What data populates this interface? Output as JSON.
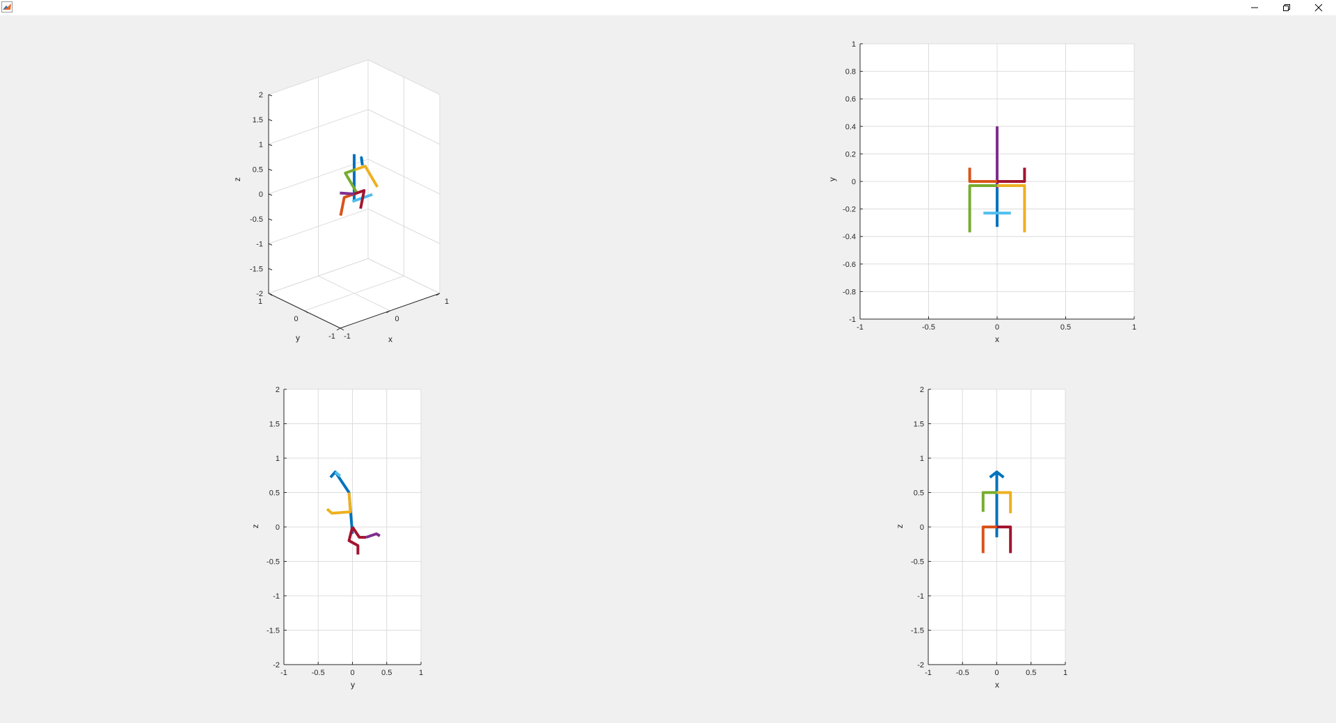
{
  "window": {
    "controls": {
      "minimize": "minimize",
      "restore": "restore",
      "close": "close"
    }
  },
  "colors": {
    "blue": "#0072BD",
    "orange": "#D95319",
    "yellow": "#EDB120",
    "purple": "#7E2F8E",
    "green": "#77AC30",
    "cyan": "#4DBEEE",
    "red": "#A2142F"
  },
  "chart_data": [
    {
      "id": "view-3d",
      "type": "line3d",
      "xlabel": "x",
      "ylabel": "y",
      "zlabel": "z",
      "xlim": [
        -1,
        1
      ],
      "ylim": [
        -1,
        1
      ],
      "zlim": [
        -2,
        2
      ],
      "xticks": [
        -1,
        0,
        1
      ],
      "yticks": [
        -1,
        0,
        1
      ],
      "zticks": [
        -2,
        -1.5,
        -1,
        -0.5,
        0,
        0.5,
        1,
        1.5,
        2
      ],
      "grid": true
    },
    {
      "id": "view-xy",
      "type": "line",
      "xlabel": "x",
      "ylabel": "y",
      "xlim": [
        -1,
        1
      ],
      "ylim": [
        -1,
        1
      ],
      "xticks": [
        -1,
        -0.5,
        0,
        0.5,
        1
      ],
      "yticks": [
        -1,
        -0.8,
        -0.6,
        -0.4,
        -0.2,
        0,
        0.2,
        0.4,
        0.6,
        0.8,
        1
      ],
      "grid": true
    },
    {
      "id": "view-yz",
      "type": "line",
      "xlabel": "y",
      "ylabel": "z",
      "xlim": [
        -1,
        1
      ],
      "ylim": [
        -2,
        2
      ],
      "xticks": [
        -1,
        -0.5,
        0,
        0.5,
        1
      ],
      "yticks": [
        -2,
        -1.5,
        -1,
        -0.5,
        0,
        0.5,
        1,
        1.5,
        2
      ],
      "grid": true
    },
    {
      "id": "view-xz",
      "type": "line",
      "xlabel": "x",
      "ylabel": "z",
      "xlim": [
        -1,
        1
      ],
      "ylim": [
        -2,
        2
      ],
      "xticks": [
        -1,
        -0.5,
        0,
        0.5,
        1
      ],
      "yticks": [
        -2,
        -1.5,
        -1,
        -0.5,
        0,
        0.5,
        1,
        1.5,
        2
      ],
      "grid": true
    }
  ],
  "skeleton": [
    {
      "color": "#0072BD",
      "points": [
        [
          0,
          0,
          -0.15
        ],
        [
          0,
          0,
          0.8
        ]
      ]
    },
    {
      "color": "#0072BD",
      "points": [
        [
          -0.05,
          -0.3,
          0.7
        ],
        [
          0,
          -0.2,
          0.8
        ],
        [
          0.05,
          -0.15,
          0.7
        ]
      ]
    },
    {
      "color": "#4DBEEE",
      "points": [
        [
          -0.2,
          -0.23,
          0.0
        ],
        [
          0.2,
          -0.23,
          0.0
        ]
      ]
    },
    {
      "color": "#77AC30",
      "points": [
        [
          0.0,
          -0.03,
          0.5
        ],
        [
          -0.2,
          -0.03,
          0.5
        ],
        [
          -0.2,
          -0.37,
          0.2
        ]
      ]
    },
    {
      "color": "#EDB120",
      "points": [
        [
          0.0,
          -0.03,
          0.5
        ],
        [
          0.2,
          -0.03,
          0.5
        ],
        [
          0.2,
          -0.37,
          0.2
        ]
      ]
    },
    {
      "color": "#D95319",
      "points": [
        [
          0.0,
          0.0,
          0.0
        ],
        [
          -0.2,
          0.0,
          0.0
        ],
        [
          -0.2,
          0.1,
          -0.4
        ]
      ]
    },
    {
      "color": "#A2142F",
      "points": [
        [
          0.0,
          0.0,
          0.0
        ],
        [
          0.2,
          0.0,
          0.0
        ],
        [
          0.2,
          0.1,
          -0.4
        ]
      ]
    },
    {
      "color": "#7E2F8E",
      "points": [
        [
          0.0,
          0.0,
          0.0
        ],
        [
          0.0,
          0.4,
          -0.12
        ]
      ]
    }
  ],
  "side_view_yz": [
    {
      "color": "#0072BD",
      "points": [
        [
          0.0,
          -0.1
        ],
        [
          -0.05,
          0.5
        ],
        [
          -0.25,
          0.8
        ],
        [
          -0.32,
          0.72
        ]
      ]
    },
    {
      "color": "#4DBEEE",
      "points": [
        [
          -0.25,
          0.8
        ],
        [
          -0.18,
          0.74
        ]
      ]
    },
    {
      "color": "#EDB120",
      "points": [
        [
          -0.05,
          0.5
        ],
        [
          -0.03,
          0.22
        ],
        [
          -0.3,
          0.2
        ],
        [
          -0.37,
          0.26
        ]
      ]
    },
    {
      "color": "#A2142F",
      "points": [
        [
          0.0,
          0.0
        ],
        [
          -0.05,
          -0.2
        ],
        [
          0.08,
          -0.27
        ],
        [
          0.08,
          -0.4
        ]
      ]
    },
    {
      "color": "#A2142F",
      "points": [
        [
          0.0,
          0.0
        ],
        [
          0.1,
          -0.15
        ],
        [
          0.2,
          -0.15
        ]
      ]
    },
    {
      "color": "#7E2F8E",
      "points": [
        [
          0.2,
          -0.15
        ],
        [
          0.35,
          -0.1
        ],
        [
          0.4,
          -0.13
        ]
      ]
    }
  ],
  "front_view_xz": [
    {
      "color": "#0072BD",
      "points": [
        [
          0.0,
          -0.15
        ],
        [
          0.0,
          0.8
        ]
      ]
    },
    {
      "color": "#0072BD",
      "points": [
        [
          -0.1,
          0.72
        ],
        [
          0.0,
          0.8
        ],
        [
          0.1,
          0.72
        ]
      ]
    },
    {
      "color": "#77AC30",
      "points": [
        [
          0.0,
          0.5
        ],
        [
          -0.2,
          0.5
        ],
        [
          -0.2,
          0.22
        ]
      ]
    },
    {
      "color": "#EDB120",
      "points": [
        [
          0.0,
          0.5
        ],
        [
          0.2,
          0.5
        ],
        [
          0.2,
          0.2
        ]
      ]
    },
    {
      "color": "#D95319",
      "points": [
        [
          0.0,
          0.0
        ],
        [
          -0.2,
          0.0
        ],
        [
          -0.2,
          -0.38
        ]
      ]
    },
    {
      "color": "#A2142F",
      "points": [
        [
          0.0,
          0.0
        ],
        [
          0.2,
          0.0
        ],
        [
          0.2,
          -0.38
        ]
      ]
    }
  ],
  "top_view_xy": [
    {
      "color": "#7E2F8E",
      "points": [
        [
          0.0,
          0.4
        ],
        [
          0.0,
          -0.05
        ]
      ]
    },
    {
      "color": "#0072BD",
      "points": [
        [
          0.0,
          -0.05
        ],
        [
          0.0,
          -0.33
        ]
      ]
    },
    {
      "color": "#4DBEEE",
      "points": [
        [
          -0.1,
          -0.23
        ],
        [
          0.1,
          -0.23
        ]
      ]
    },
    {
      "color": "#D95319",
      "points": [
        [
          -0.2,
          0.1
        ],
        [
          -0.2,
          0.0
        ],
        [
          0.0,
          0.0
        ]
      ]
    },
    {
      "color": "#A2142F",
      "points": [
        [
          0.0,
          0.0
        ],
        [
          0.2,
          0.0
        ],
        [
          0.2,
          0.1
        ]
      ]
    },
    {
      "color": "#77AC30",
      "points": [
        [
          0.0,
          -0.03
        ],
        [
          -0.2,
          -0.03
        ],
        [
          -0.2,
          -0.37
        ]
      ]
    },
    {
      "color": "#EDB120",
      "points": [
        [
          0.0,
          -0.03
        ],
        [
          0.2,
          -0.03
        ],
        [
          0.2,
          -0.37
        ]
      ]
    }
  ]
}
